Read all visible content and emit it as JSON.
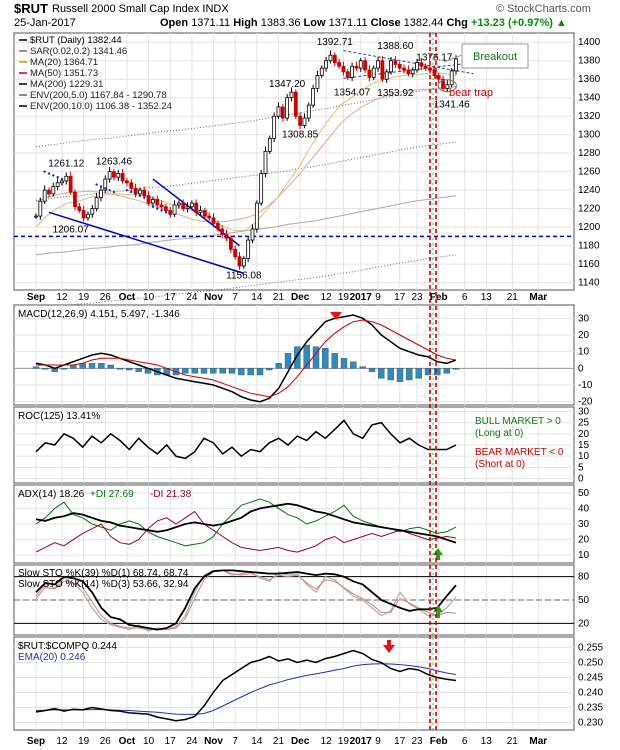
{
  "header": {
    "symbol": "$RUT",
    "name": "Russell 2000 Small Cap Index",
    "exchange": "INDX",
    "date": "25-Jan-2017",
    "open_label": "Open",
    "open": "1371.11",
    "high_label": "High",
    "high": "1383.36",
    "low_label": "Low",
    "low": "1371.11",
    "close_label": "Close",
    "close": "1382.44",
    "chg_label": "Chg",
    "chg": "+13.23 (+0.97%)",
    "watermark": "© StockCharts.com",
    "up_arrow": "▲"
  },
  "legend": {
    "main": "$RUT (Daily) 1382.44",
    "sar": "SAR(0.02,0.2) 1341.46",
    "ma20": "MA(20) 1364.71",
    "ma50": "MA(50) 1351.73",
    "ma200": "MA(200) 1229.31",
    "env5": "ENV(200,5.0) 1167.84 - 1290.78",
    "env10": "ENV(200,10.0) 1106.38 - 1352.24"
  },
  "annotations": {
    "breakout": "Breakout",
    "bear_trap": "bear trap",
    "bull_market": "BULL MARKET > 0",
    "bull_sub": "(Long at 0)",
    "bear_market": "BEAR MARKET < 0",
    "bear_sub": "(Short at 0)"
  },
  "panels": {
    "macd": {
      "label": "MACD(12,26,9) 4.151, 5.497, -1.346"
    },
    "roc": {
      "label": "ROC(125) 13.41%"
    },
    "adx": {
      "l1": "ADX(14) 18.26",
      "l2": "+DI 27.69",
      "l3": "-DI 21.38"
    },
    "sto": {
      "l1": "Slow STO %K(39) %D(1) 68.74, 68.74",
      "l2": "Slow STO %K(14) %D(3) 53.66, 32.94"
    },
    "ratio": {
      "l1": "$RUT:$COMPQ 0.244",
      "l2": "EMA(20) 0.246"
    }
  },
  "colors": {
    "up": "#000000",
    "down": "#cc0000",
    "ma20": "#cc9900",
    "ma50": "#cc0000",
    "ma200": "#000000",
    "env5": "#556699",
    "trend": "#0000cc",
    "signal": "#cc0000",
    "hist": "#3388bb",
    "plusdi": "#007700",
    "minusdi": "#990033",
    "arrow_red": "#ee1111",
    "arrow_green": "#11aa11"
  },
  "chart_data": [
    {
      "type": "candlestick",
      "title": "$RUT (Daily)",
      "ylim": [
        1132,
        1410
      ],
      "yticks": [
        1140,
        1160,
        1180,
        1200,
        1220,
        1240,
        1260,
        1280,
        1300,
        1320,
        1340,
        1360,
        1380,
        1400
      ],
      "x_tick_labels": [
        "Sep",
        "12",
        "19",
        "26",
        "Oct",
        "10",
        "17",
        "24",
        "Nov",
        "7",
        "14",
        "21",
        "Dec",
        "12",
        "19",
        "2017",
        "9",
        "17",
        "23",
        "Feb",
        "6",
        "13",
        "21",
        "Mar"
      ],
      "price_labels": [
        {
          "text": "1392.71",
          "day": 69
        },
        {
          "text": "1388.60",
          "day": 83
        },
        {
          "text": "1376.17",
          "day": 92
        },
        {
          "text": "1347.20",
          "day": 58
        },
        {
          "text": "1354.07",
          "day": 73
        },
        {
          "text": "1353.92",
          "day": 83
        },
        {
          "text": "1341.46",
          "day": 96
        },
        {
          "text": "1308.85",
          "day": 61
        },
        {
          "text": "1261.12",
          "day": 7
        },
        {
          "text": "1263.46",
          "day": 18
        },
        {
          "text": "1206.07",
          "day": 8
        },
        {
          "text": "1156.08",
          "day": 48
        },
        {
          "text": "1196.95",
          "day": 102
        }
      ],
      "closes": [
        1212,
        1228,
        1240,
        1236,
        1244,
        1248,
        1250,
        1255,
        1238,
        1222,
        1218,
        1210,
        1214,
        1220,
        1232,
        1240,
        1252,
        1260,
        1254,
        1258,
        1250,
        1248,
        1242,
        1236,
        1240,
        1234,
        1226,
        1230,
        1224,
        1222,
        1218,
        1214,
        1224,
        1226,
        1220,
        1222,
        1226,
        1216,
        1218,
        1212,
        1210,
        1204,
        1198,
        1192,
        1188,
        1176,
        1168,
        1158,
        1166,
        1186,
        1198,
        1226,
        1258,
        1282,
        1296,
        1320,
        1330,
        1318,
        1340,
        1346,
        1320,
        1310,
        1318,
        1332,
        1350,
        1364,
        1372,
        1380,
        1386,
        1378,
        1374,
        1368,
        1362,
        1374,
        1372,
        1380,
        1370,
        1362,
        1372,
        1380,
        1360,
        1368,
        1380,
        1376,
        1372,
        1370,
        1366,
        1370,
        1378,
        1374,
        1372,
        1370,
        1364,
        1360,
        1350,
        1354,
        1369,
        1382
      ],
      "sar": [
        {
          "day": 2,
          "v": 1260
        },
        {
          "day": 14,
          "v": 1246
        },
        {
          "day": 21,
          "v": 1240
        },
        {
          "day": 27,
          "v": 1222
        }
      ],
      "ma20": [
        1200,
        1212,
        1220,
        1226,
        1228,
        1232,
        1234,
        1236,
        1236,
        1235,
        1234,
        1232,
        1228,
        1224,
        1221,
        1217,
        1212,
        1206,
        1200,
        1196,
        1197,
        1206,
        1219,
        1232,
        1249,
        1264,
        1284,
        1302,
        1318,
        1332,
        1340,
        1348,
        1355,
        1359,
        1362,
        1364,
        1365,
        1366,
        1367,
        1366,
        1364
      ],
      "ma50": [
        1228,
        1232,
        1235,
        1237,
        1238,
        1239,
        1238,
        1236,
        1234,
        1231,
        1228,
        1224,
        1220,
        1216,
        1212,
        1208,
        1206,
        1206,
        1206,
        1208,
        1210,
        1214,
        1222,
        1232,
        1244,
        1256,
        1270,
        1284,
        1298,
        1312,
        1322,
        1330,
        1336,
        1341,
        1345,
        1347,
        1348,
        1349,
        1350,
        1351,
        1352
      ],
      "ma200": [
        1170,
        1172,
        1173,
        1175,
        1177,
        1178,
        1180,
        1181,
        1183,
        1185,
        1187,
        1188,
        1190,
        1192,
        1194,
        1196,
        1198,
        1200,
        1203,
        1205,
        1207,
        1210,
        1213,
        1216,
        1219,
        1222,
        1225,
        1228,
        1230,
        1232,
        1234
      ],
      "env5_upper": [
        1229,
        1231,
        1233,
        1234,
        1236,
        1238,
        1239,
        1241,
        1243,
        1244,
        1246,
        1248,
        1250,
        1252,
        1254,
        1256,
        1258,
        1260,
        1263,
        1265,
        1268,
        1271,
        1274,
        1277,
        1280,
        1283,
        1286,
        1288,
        1290,
        1292
      ],
      "env5_lower": [
        1112,
        1114,
        1115,
        1117,
        1118,
        1120,
        1121,
        1123,
        1124,
        1126,
        1128,
        1130,
        1131,
        1133,
        1135,
        1137,
        1139,
        1141,
        1143,
        1145,
        1147,
        1150,
        1152,
        1155,
        1158,
        1161,
        1163,
        1166,
        1168,
        1170
      ],
      "env10_upper": [
        1287,
        1289,
        1291,
        1293,
        1295,
        1296,
        1298,
        1300,
        1302,
        1304,
        1305,
        1307,
        1309,
        1311,
        1313,
        1315,
        1318,
        1320,
        1323,
        1326,
        1328,
        1331,
        1334,
        1337,
        1340,
        1343,
        1346,
        1348,
        1350,
        1352
      ],
      "env10_lower": [
        1053,
        1055,
        1057,
        1058,
        1060,
        1061,
        1063,
        1064,
        1066,
        1067,
        1069,
        1071,
        1072,
        1074,
        1076,
        1077,
        1079,
        1081,
        1083,
        1085,
        1087,
        1089,
        1092,
        1094,
        1097,
        1099,
        1102,
        1104,
        1106,
        1107
      ],
      "hline": 1190
    },
    {
      "type": "line",
      "title": "MACD(12,26,9)",
      "ylim": [
        -22,
        38
      ],
      "yticks": [
        -20,
        -10,
        0,
        10,
        20,
        30
      ],
      "macd": [
        3,
        2,
        0,
        2,
        4,
        6,
        8,
        9,
        8,
        6,
        4,
        2,
        0,
        -2,
        -4,
        -6,
        -7,
        -8,
        -9,
        -10,
        -12,
        -14,
        -17,
        -19,
        -20,
        -18,
        -12,
        -2,
        8,
        16,
        22,
        28,
        30,
        31,
        32,
        30,
        26,
        20,
        16,
        12,
        10,
        8,
        7,
        4,
        3,
        5
      ],
      "signal": [
        2,
        2,
        2,
        2,
        2,
        3,
        5,
        6,
        6,
        6,
        5,
        4,
        3,
        2,
        0,
        -2,
        -4,
        -5,
        -6,
        -7,
        -9,
        -11,
        -13,
        -15,
        -16,
        -17,
        -15,
        -11,
        -5,
        2,
        9,
        16,
        21,
        25,
        28,
        29,
        28,
        26,
        23,
        20,
        17,
        14,
        11,
        8,
        6,
        5
      ],
      "hist": [
        1,
        0,
        -2,
        0,
        2,
        3,
        3,
        3,
        2,
        0,
        -1,
        -2,
        -3,
        -4,
        -4,
        -4,
        -3,
        -3,
        -3,
        -3,
        -3,
        -3,
        -4,
        -4,
        -4,
        -1,
        3,
        9,
        13,
        14,
        13,
        12,
        9,
        6,
        4,
        1,
        -2,
        -6,
        -7,
        -8,
        -7,
        -6,
        -4,
        -4,
        -3,
        0
      ]
    },
    {
      "type": "line",
      "title": "ROC(125)",
      "ylim": [
        -2,
        32
      ],
      "yticks": [
        0,
        5,
        10,
        15,
        20,
        25,
        30
      ],
      "roc": [
        12,
        16,
        15,
        20,
        18,
        14,
        19,
        16,
        20,
        17,
        13,
        18,
        14,
        11,
        15,
        10,
        9,
        12,
        18,
        16,
        11,
        14,
        10,
        13,
        12,
        16,
        18,
        15,
        19,
        17,
        21,
        18,
        22,
        26,
        20,
        18,
        24,
        25,
        20,
        16,
        18,
        15,
        13,
        13,
        13,
        15
      ]
    },
    {
      "type": "line",
      "title": "ADX(14)",
      "ylim": [
        5,
        55
      ],
      "yticks": [
        10,
        20,
        30,
        40,
        50
      ],
      "adx": [
        33,
        32,
        34,
        35,
        37,
        36,
        34,
        32,
        31,
        29,
        28,
        27,
        26,
        25,
        26,
        28,
        30,
        31,
        30,
        29,
        30,
        32,
        34,
        38,
        40,
        41,
        42,
        43,
        42,
        40,
        38,
        37,
        35,
        33,
        31,
        30,
        29,
        28,
        27,
        26,
        25,
        24,
        23,
        22,
        20,
        18
      ],
      "plus_di": [
        30,
        34,
        40,
        44,
        36,
        34,
        30,
        28,
        26,
        30,
        32,
        30,
        25,
        22,
        20,
        18,
        16,
        17,
        18,
        22,
        30,
        36,
        42,
        44,
        46,
        44,
        40,
        36,
        34,
        30,
        32,
        35,
        38,
        42,
        35,
        32,
        30,
        28,
        27,
        25,
        27,
        28,
        26,
        24,
        25,
        28
      ],
      "minus_di": [
        12,
        15,
        18,
        16,
        20,
        24,
        27,
        30,
        22,
        18,
        17,
        20,
        27,
        32,
        34,
        30,
        34,
        38,
        30,
        26,
        22,
        18,
        15,
        14,
        13,
        14,
        15,
        13,
        12,
        14,
        16,
        20,
        22,
        18,
        20,
        22,
        24,
        22,
        24,
        26,
        24,
        22,
        20,
        21,
        22,
        21
      ]
    },
    {
      "type": "line",
      "title": "Slow STO",
      "ylim": [
        5,
        95
      ],
      "yticks": [
        20,
        50,
        80
      ],
      "k39": [
        60,
        72,
        70,
        80,
        78,
        74,
        60,
        40,
        28,
        25,
        18,
        16,
        14,
        12,
        14,
        20,
        40,
        65,
        80,
        87,
        88,
        88,
        87,
        86,
        85,
        84,
        84,
        85,
        86,
        84,
        82,
        84,
        83,
        80,
        74,
        70,
        60,
        50,
        45,
        40,
        36,
        38,
        38,
        40,
        55,
        69
      ],
      "k14": [
        55,
        70,
        65,
        78,
        72,
        60,
        40,
        25,
        18,
        15,
        12,
        18,
        10,
        14,
        12,
        16,
        30,
        60,
        82,
        88,
        88,
        82,
        84,
        86,
        78,
        74,
        86,
        82,
        84,
        70,
        60,
        80,
        76,
        65,
        55,
        50,
        40,
        30,
        36,
        60,
        45,
        38,
        30,
        30,
        40,
        54
      ],
      "d3": [
        52,
        66,
        64,
        74,
        72,
        66,
        48,
        30,
        20,
        16,
        14,
        14,
        12,
        12,
        12,
        14,
        26,
        52,
        76,
        86,
        88,
        84,
        82,
        84,
        80,
        76,
        82,
        80,
        82,
        72,
        64,
        76,
        74,
        66,
        58,
        52,
        44,
        34,
        34,
        52,
        46,
        40,
        34,
        30,
        34,
        33
      ]
    },
    {
      "type": "line",
      "title": "$RUT:$COMPQ",
      "ylim": [
        0.2275,
        0.2585
      ],
      "yticks": [
        0.23,
        0.235,
        0.24,
        0.245,
        0.25,
        0.255
      ],
      "ratio": [
        0.2335,
        0.234,
        0.2346,
        0.2338,
        0.2344,
        0.2342,
        0.235,
        0.2345,
        0.234,
        0.2338,
        0.2332,
        0.233,
        0.2328,
        0.2318,
        0.2312,
        0.2306,
        0.231,
        0.232,
        0.2355,
        0.24,
        0.244,
        0.246,
        0.248,
        0.25,
        0.2508,
        0.252,
        0.2505,
        0.2512,
        0.25,
        0.2508,
        0.25,
        0.2513,
        0.252,
        0.253,
        0.254,
        0.253,
        0.251,
        0.25,
        0.248,
        0.247,
        0.248,
        0.2475,
        0.246,
        0.245,
        0.2444,
        0.244
      ],
      "ema": [
        0.234,
        0.2341,
        0.2342,
        0.2342,
        0.2342,
        0.2342,
        0.2343,
        0.2343,
        0.2342,
        0.2341,
        0.234,
        0.2338,
        0.2336,
        0.2334,
        0.2331,
        0.2328,
        0.2327,
        0.2327,
        0.233,
        0.234,
        0.2355,
        0.237,
        0.2385,
        0.24,
        0.2413,
        0.2425,
        0.2434,
        0.2443,
        0.245,
        0.2457,
        0.2462,
        0.2468,
        0.2474,
        0.248,
        0.2488,
        0.2493,
        0.2495,
        0.2496,
        0.2495,
        0.2493,
        0.249,
        0.2486,
        0.248,
        0.2472,
        0.2465,
        0.246
      ]
    }
  ]
}
